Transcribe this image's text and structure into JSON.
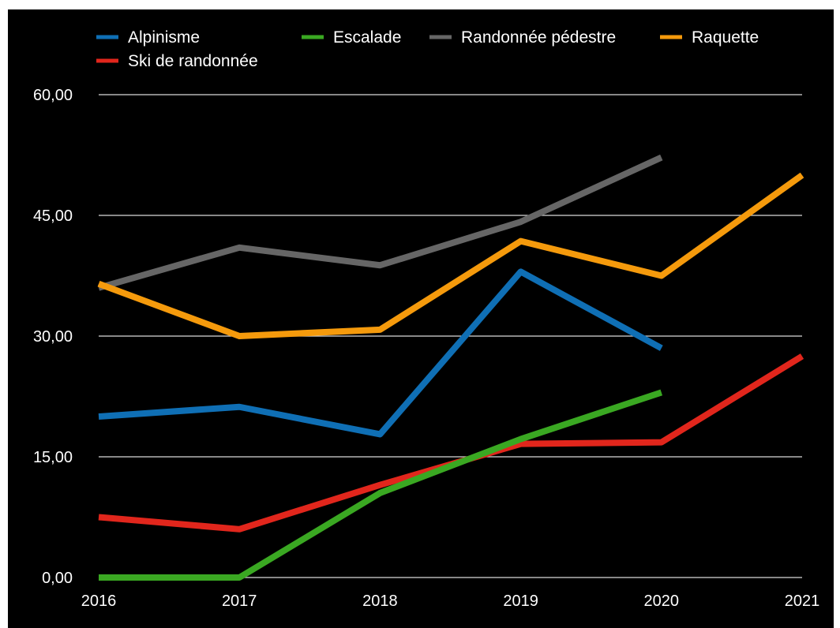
{
  "chart_data": {
    "type": "line",
    "title": "",
    "xlabel": "",
    "ylabel": "",
    "x": [
      "2016",
      "2017",
      "2018",
      "2019",
      "2020",
      "2021"
    ],
    "ylim": [
      0,
      60
    ],
    "yticks": [
      "0,00",
      "15,00",
      "30,00",
      "45,00",
      "60,00"
    ],
    "ytick_values": [
      0,
      15,
      30,
      45,
      60
    ],
    "grid": "horizontal",
    "legend": "top",
    "series": [
      {
        "name": "Alpinisme",
        "color": "#0f6fb5",
        "values": [
          20.0,
          21.2,
          17.8,
          38.0,
          28.5,
          null
        ]
      },
      {
        "name": "Escalade",
        "color": "#3aa822",
        "values": [
          0.0,
          0.0,
          10.5,
          17.2,
          23.0,
          null
        ]
      },
      {
        "name": "Randonnée pédestre",
        "color": "#666666",
        "values": [
          36.0,
          41.0,
          38.8,
          44.2,
          52.2,
          null
        ]
      },
      {
        "name": "Raquette",
        "color": "#f59a0c",
        "values": [
          36.5,
          30.0,
          30.8,
          41.8,
          37.5,
          50.0
        ]
      },
      {
        "name": "Ski de randonnée",
        "color": "#e1261c",
        "values": [
          7.5,
          6.0,
          11.5,
          16.6,
          16.8,
          27.5
        ]
      }
    ]
  }
}
